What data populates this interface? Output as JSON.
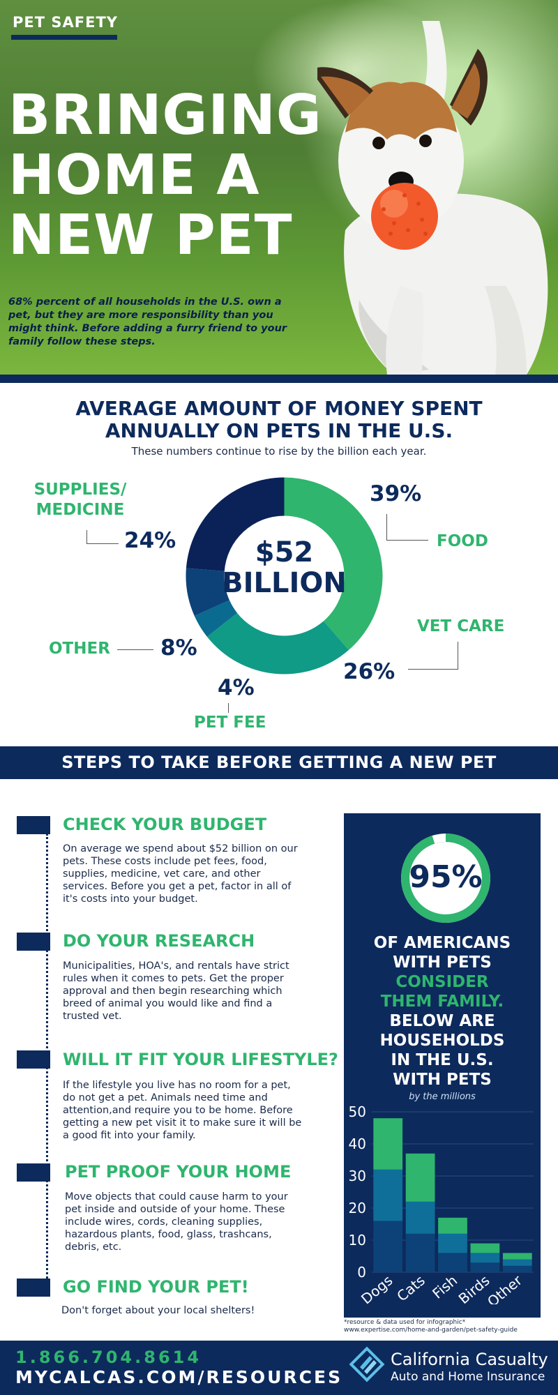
{
  "hero": {
    "badge": "PET SAFETY",
    "title": "BRINGING HOME A NEW PET",
    "intro": "68% percent of all households in the U.S. own a pet, but they are more responsibility than you might think. Before adding a furry friend to your family follow these steps."
  },
  "spending": {
    "title_line1": "AVERAGE AMOUNT OF MONEY SPENT",
    "title_line2": "ANNUALLY ON PETS IN THE U.S.",
    "subtitle": "These numbers continue to rise by the billion each year.",
    "center_line1": "$52",
    "center_line2": "BILLION",
    "segments": [
      {
        "label": "FOOD",
        "pct": "39%",
        "value": 39,
        "color": "#2fb56e"
      },
      {
        "label": "VET CARE",
        "pct": "26%",
        "value": 26,
        "color": "#0f9b86"
      },
      {
        "label": "PET FEE",
        "pct": "4%",
        "value": 4,
        "color": "#0a6a8f"
      },
      {
        "label": "OTHER",
        "pct": "8%",
        "value": 8,
        "color": "#0c4278"
      },
      {
        "label_line1": "SUPPLIES/",
        "label_line2": "MEDICINE",
        "pct": "24%",
        "value": 24,
        "color": "#0a2258"
      }
    ]
  },
  "steps": {
    "banner": "STEPS TO TAKE BEFORE GETTING A NEW PET",
    "items": [
      {
        "title": "CHECK YOUR BUDGET",
        "text": "On average we spend about $52 billion on our pets. These costs include pet fees, food, supplies, medicine, vet care, and other services. Before you get a pet, factor in all of it's costs into your budget."
      },
      {
        "title": "DO YOUR RESEARCH",
        "text": "Municipalities, HOA's, and rentals have strict rules when it comes to pets. Get the proper approval and then begin researching which breed of animal you would like and find a trusted vet."
      },
      {
        "title": "WILL IT FIT YOUR LIFESTYLE?",
        "text": "If the lifestyle you live has no room for a pet, do not get a pet. Animals need time and attention,and require you to be home. Before getting a new pet visit it to make sure it will be a good fit into your family."
      },
      {
        "title": "PET PROOF YOUR HOME",
        "text": "Move objects that could cause harm to your pet inside and outside of your home. These include wires, cords, cleaning supplies, hazardous plants, food, glass, trashcans, debris, etc."
      },
      {
        "title": "GO FIND YOUR PET!",
        "text": "Don't forget about your local shelters!"
      }
    ]
  },
  "family": {
    "percent": "95%",
    "percent_value": 95,
    "line1": "OF AMERICANS",
    "line2": "WITH PETS",
    "line3": "CONSIDER",
    "line4": "THEM FAMILY.",
    "line5": "BELOW ARE",
    "line6": "HOUSEHOLDS",
    "line7": "IN THE U.S.",
    "line8": "WITH PETS",
    "sub": "by the millions"
  },
  "chart_data": {
    "type": "bar",
    "stacked": true,
    "categories": [
      "Dogs",
      "Cats",
      "Fish",
      "Birds",
      "Other"
    ],
    "series": [
      {
        "values": [
          16,
          12,
          6,
          3,
          2
        ],
        "color": "#0c4278"
      },
      {
        "values": [
          16,
          10,
          6,
          3,
          2
        ],
        "color": "#0f6f99"
      },
      {
        "values": [
          16,
          15,
          5,
          3,
          2
        ],
        "color": "#2fb56e"
      }
    ],
    "yticks": [
      "0",
      "10",
      "20",
      "30",
      "40",
      "50"
    ],
    "ylim": [
      0,
      50
    ]
  },
  "source_note_line1": "*resource & data used for infographic*",
  "source_note_line2": "www.expertise.com/home-and-garden/pet-safety-guide",
  "footer": {
    "phone": "1.866.704.8614",
    "site": "MYCALCAS.COM/RESOURCES",
    "brand": "California Casualty",
    "brand_sub": "Auto and Home Insurance"
  }
}
